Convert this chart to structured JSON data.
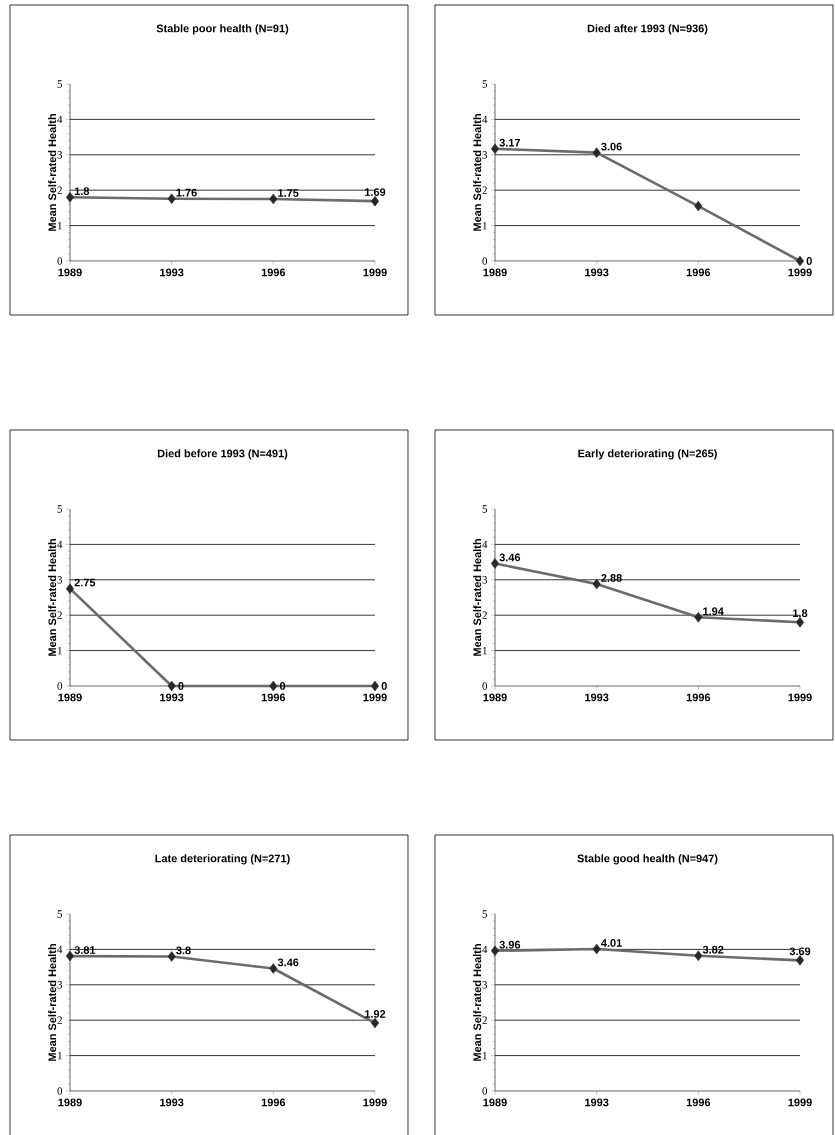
{
  "chart_data": [
    {
      "type": "line",
      "title": "Stable poor health (N=91)",
      "ylabel": "Mean Self-rated Health",
      "categories": [
        "1989",
        "1993",
        "1996",
        "1999"
      ],
      "values": [
        1.8,
        1.76,
        1.75,
        1.69
      ],
      "value_labels": [
        "1.8",
        "1.76",
        "1.75",
        "1.69"
      ],
      "color": "#6b6b6b",
      "marker": "diamond",
      "ylim": [
        0,
        5
      ],
      "yticks": [
        0,
        1,
        2,
        3,
        4,
        5
      ],
      "grid": "y"
    },
    {
      "type": "line",
      "title": "Died after 1993 (N=936)",
      "ylabel": "Mean Self-rated Health",
      "categories": [
        "1989",
        "1993",
        "1996",
        "1999"
      ],
      "values": [
        3.17,
        3.06,
        1.55,
        0
      ],
      "value_labels": [
        "3.17",
        "3.06",
        null,
        "0"
      ],
      "color": "#6b6b6b",
      "marker": "diamond",
      "ylim": [
        0,
        5
      ],
      "yticks": [
        0,
        1,
        2,
        3,
        4,
        5
      ],
      "grid": "y"
    },
    {
      "type": "line",
      "title": "Died before 1993 (N=491)",
      "ylabel": "Mean Self-rated Health",
      "categories": [
        "1989",
        "1993",
        "1996",
        "1999"
      ],
      "values": [
        2.75,
        0,
        0,
        0
      ],
      "value_labels": [
        "2.75",
        "0",
        "0",
        "0"
      ],
      "color": "#6b6b6b",
      "marker": "diamond",
      "ylim": [
        0,
        5
      ],
      "yticks": [
        0,
        1,
        2,
        3,
        4,
        5
      ],
      "grid": "y"
    },
    {
      "type": "line",
      "title": "Early deteriorating (N=265)",
      "ylabel": "Mean Self-rated Health",
      "categories": [
        "1989",
        "1993",
        "1996",
        "1999"
      ],
      "values": [
        3.46,
        2.88,
        1.94,
        1.8
      ],
      "value_labels": [
        "3.46",
        "2.88",
        "1.94",
        "1.8"
      ],
      "color": "#6b6b6b",
      "marker": "diamond",
      "ylim": [
        0,
        5
      ],
      "yticks": [
        0,
        1,
        2,
        3,
        4,
        5
      ],
      "grid": "y"
    },
    {
      "type": "line",
      "title": "Late deteriorating (N=271)",
      "ylabel": "Mean Self-rated Health",
      "categories": [
        "1989",
        "1993",
        "1996",
        "1999"
      ],
      "values": [
        3.81,
        3.8,
        3.46,
        1.92
      ],
      "value_labels": [
        "3.81",
        "3.8",
        "3.46",
        "1.92"
      ],
      "color": "#6b6b6b",
      "marker": "diamond",
      "ylim": [
        0,
        5
      ],
      "yticks": [
        0,
        1,
        2,
        3,
        4,
        5
      ],
      "grid": "y"
    },
    {
      "type": "line",
      "title": "Stable good health (N=947)",
      "ylabel": "Mean Self-rated Health",
      "categories": [
        "1989",
        "1993",
        "1996",
        "1999"
      ],
      "values": [
        3.96,
        4.01,
        3.82,
        3.69
      ],
      "value_labels": [
        "3.96",
        "4.01",
        "3.82",
        "3.69"
      ],
      "color": "#6b6b6b",
      "marker": "diamond",
      "ylim": [
        0,
        5
      ],
      "yticks": [
        0,
        1,
        2,
        3,
        4,
        5
      ],
      "grid": "y"
    }
  ]
}
